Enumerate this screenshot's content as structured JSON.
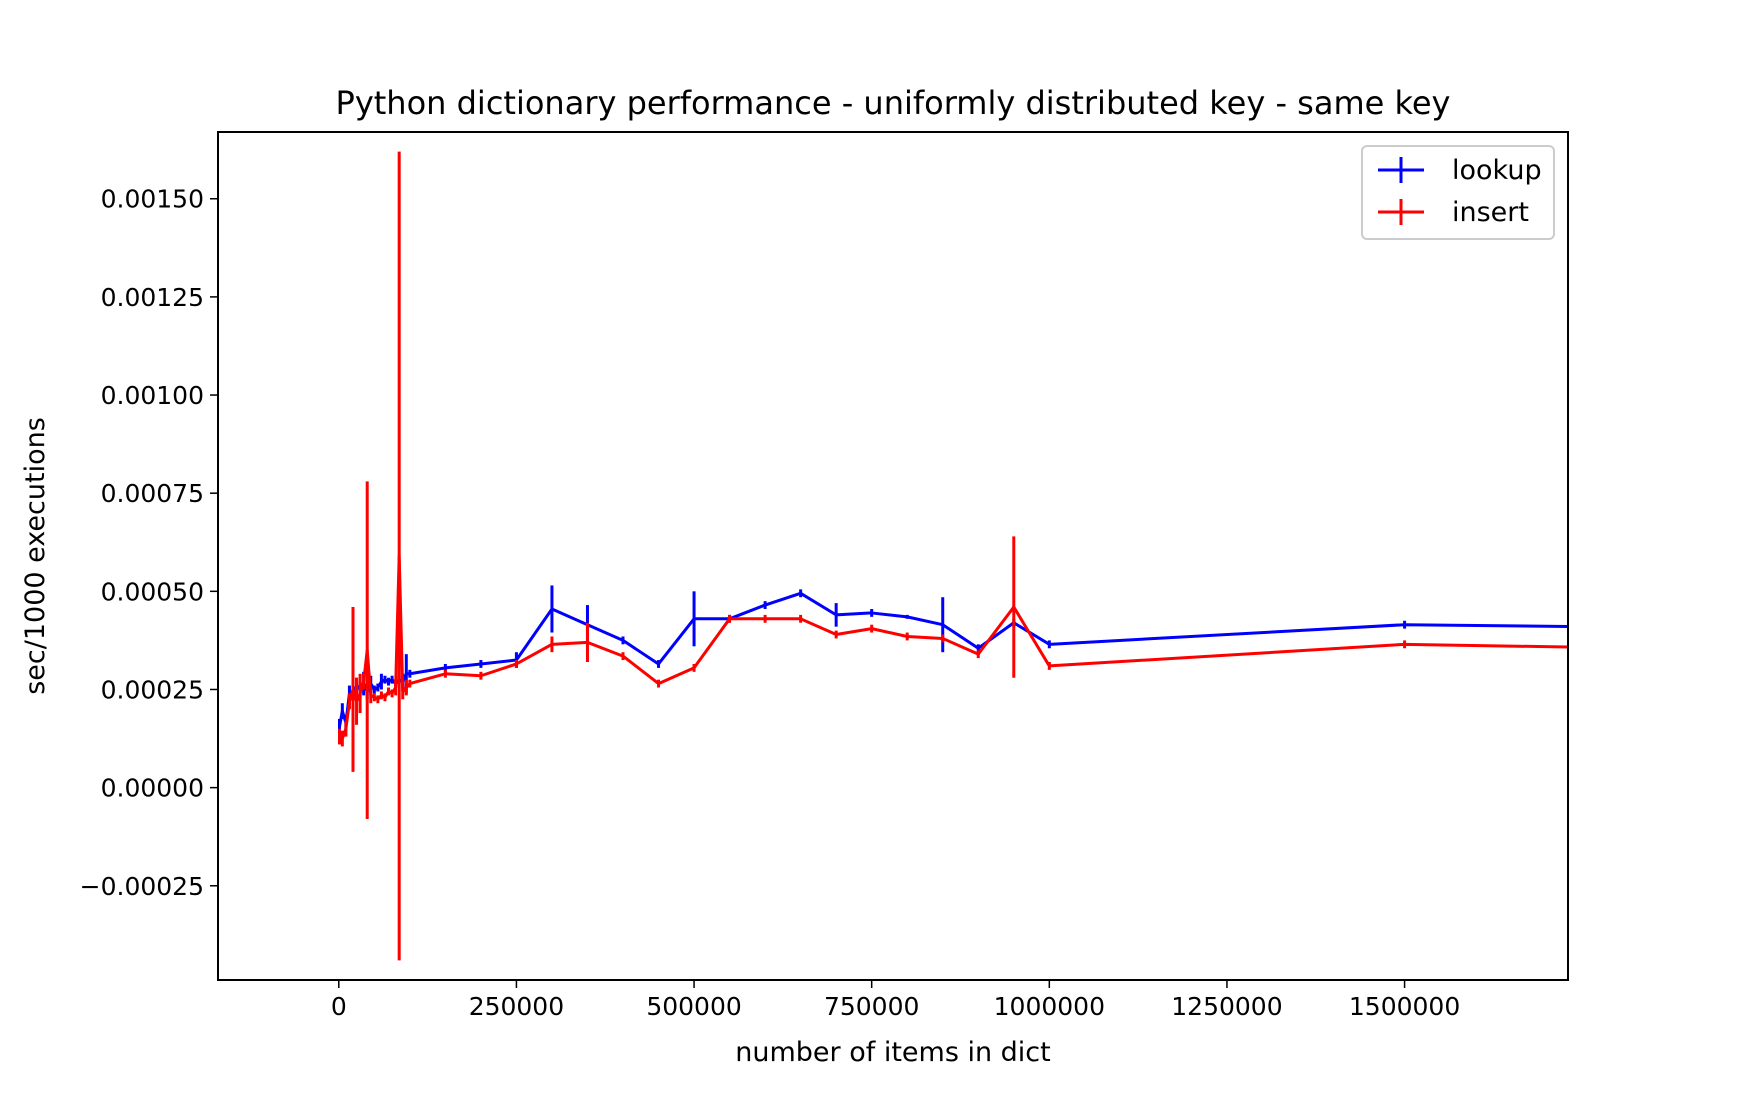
{
  "chart_data": {
    "type": "line",
    "title": "Python dictionary performance - uniformly distributed key - same key",
    "xlabel": "number of items in dict",
    "ylabel": "sec/1000 executions",
    "xlim": [
      -170000,
      1730000
    ],
    "ylim": [
      -0.00049,
      0.00167
    ],
    "x_ticks": [
      0,
      250000,
      500000,
      750000,
      1000000,
      1250000,
      1500000
    ],
    "x_tick_labels": [
      "0",
      "250000",
      "500000",
      "750000",
      "1000000",
      "1250000",
      "1500000"
    ],
    "y_ticks": [
      -0.00025,
      0.0,
      0.00025,
      0.0005,
      0.00075,
      0.001,
      0.00125,
      0.0015
    ],
    "y_tick_labels": [
      "−0.00025",
      "0.00000",
      "0.00025",
      "0.00050",
      "0.00075",
      "0.00100",
      "0.00125",
      "0.00150"
    ],
    "grid": false,
    "legend_position": "top-right",
    "series": [
      {
        "name": "lookup",
        "color": "#0000ff",
        "x": [
          1000,
          5000,
          10000,
          15000,
          20000,
          25000,
          30000,
          35000,
          40000,
          45000,
          50000,
          55000,
          60000,
          65000,
          70000,
          75000,
          80000,
          85000,
          90000,
          95000,
          100000,
          150000,
          200000,
          250000,
          300000,
          350000,
          400000,
          450000,
          500000,
          550000,
          600000,
          650000,
          700000,
          750000,
          800000,
          850000,
          900000,
          950000,
          1000000,
          1500000,
          2000000
        ],
        "y": [
          0.000155,
          0.000195,
          0.000165,
          0.00024,
          0.00023,
          0.00026,
          0.00025,
          0.000265,
          0.000245,
          0.000265,
          0.00025,
          0.000255,
          0.00027,
          0.000275,
          0.00027,
          0.000275,
          0.000265,
          0.000275,
          0.00027,
          0.00029,
          0.00029,
          0.000305,
          0.000315,
          0.000325,
          0.000455,
          0.000415,
          0.000375,
          0.000315,
          0.00043,
          0.00043,
          0.000465,
          0.000495,
          0.00044,
          0.000445,
          0.000435,
          0.000415,
          0.000355,
          0.00042,
          0.000365,
          0.000415,
          0.000405
        ],
        "err": [
          2e-05,
          2e-05,
          2e-05,
          2e-05,
          1e-05,
          2e-05,
          2e-05,
          3e-05,
          2e-05,
          2e-05,
          1e-05,
          1e-05,
          2e-05,
          1e-05,
          1e-05,
          1e-05,
          1e-05,
          1e-05,
          2e-05,
          5e-05,
          1e-05,
          1e-05,
          1e-05,
          2e-05,
          6e-05,
          5e-05,
          1e-05,
          1e-05,
          7e-05,
          1e-05,
          1e-05,
          1e-05,
          3e-05,
          1e-05,
          5e-06,
          7e-05,
          1e-05,
          1e-05,
          1e-05,
          1e-05,
          1e-05
        ]
      },
      {
        "name": "insert",
        "color": "#ff0000",
        "x": [
          1000,
          5000,
          10000,
          15000,
          20000,
          25000,
          30000,
          35000,
          40000,
          45000,
          50000,
          55000,
          60000,
          65000,
          70000,
          75000,
          80000,
          85000,
          90000,
          95000,
          100000,
          150000,
          200000,
          250000,
          300000,
          350000,
          400000,
          450000,
          500000,
          550000,
          600000,
          650000,
          700000,
          750000,
          800000,
          850000,
          900000,
          950000,
          1000000,
          1500000,
          2000000
        ],
        "y": [
          0.00013,
          0.000125,
          0.00015,
          0.00022,
          0.00025,
          0.00022,
          0.00024,
          0.00027,
          0.00035,
          0.000235,
          0.00023,
          0.000225,
          0.000235,
          0.00023,
          0.000245,
          0.00024,
          0.000255,
          0.00059,
          0.000245,
          0.000255,
          0.000265,
          0.00029,
          0.000285,
          0.000315,
          0.000365,
          0.00037,
          0.000335,
          0.000265,
          0.000305,
          0.00043,
          0.00043,
          0.00043,
          0.00039,
          0.000405,
          0.000385,
          0.00038,
          0.00034,
          0.00046,
          0.00031,
          0.000365,
          0.00035
        ],
        "err": [
          2e-05,
          2e-05,
          2e-05,
          2e-05,
          0.00021,
          6e-05,
          5e-05,
          2e-05,
          0.00043,
          2e-05,
          1e-05,
          1e-05,
          1e-05,
          1e-05,
          1e-05,
          1e-05,
          2e-05,
          0.00103,
          2e-05,
          2e-05,
          1e-05,
          1e-05,
          1e-05,
          1e-05,
          2e-05,
          5e-05,
          1e-05,
          1e-05,
          1e-05,
          1e-05,
          1e-05,
          1e-05,
          1e-05,
          1e-05,
          1e-05,
          1e-05,
          1e-05,
          0.00018,
          1e-05,
          1e-05,
          1e-05
        ]
      }
    ]
  }
}
